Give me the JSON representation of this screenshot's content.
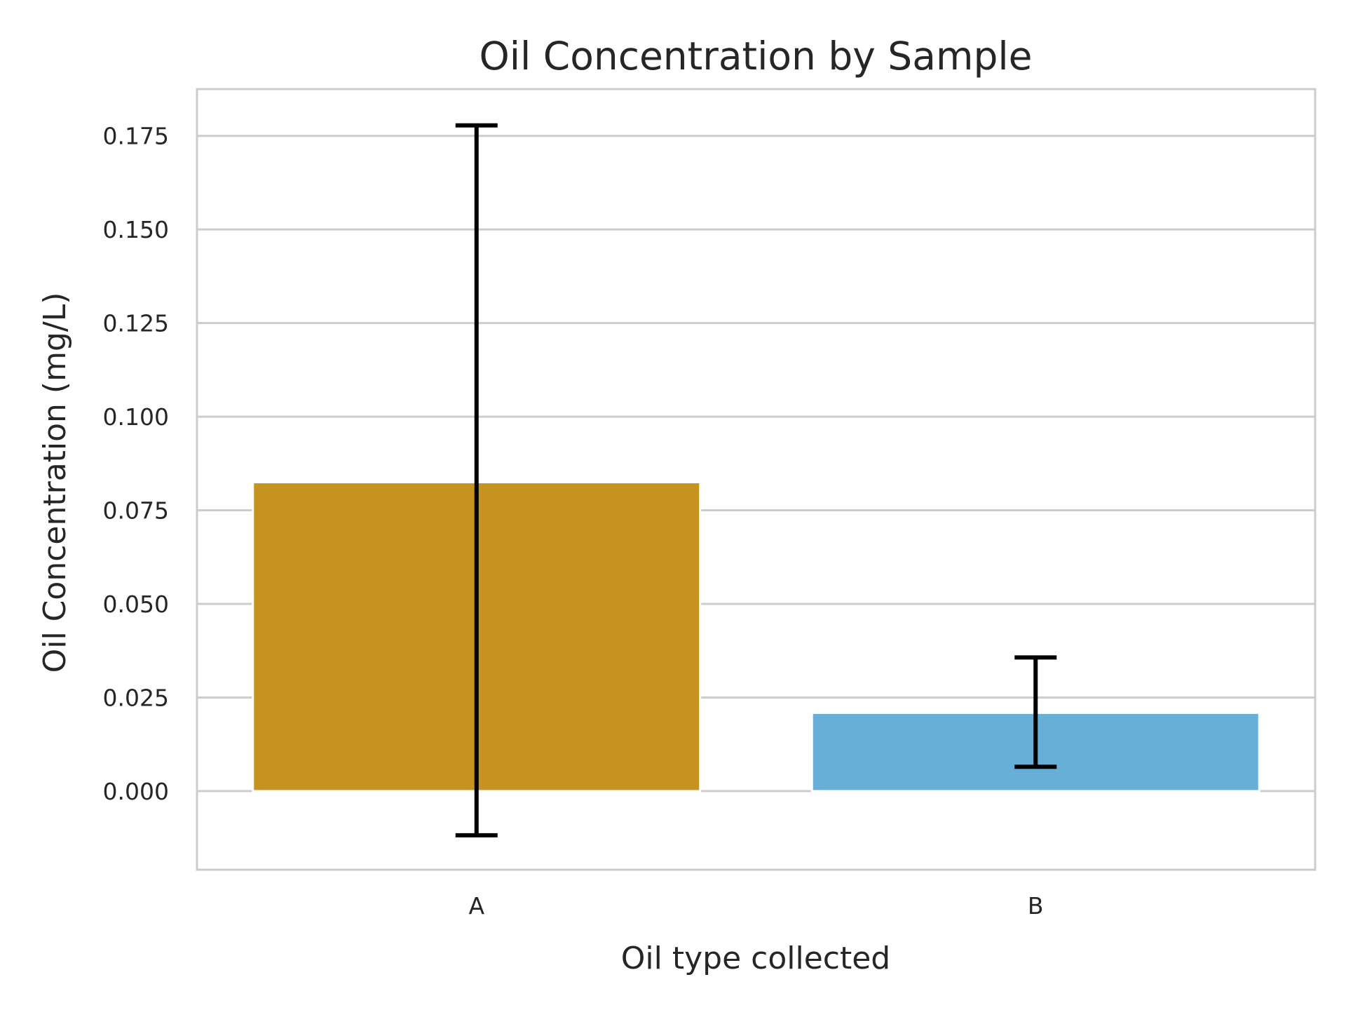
{
  "chart_data": {
    "type": "bar",
    "title": "Oil Concentration by Sample",
    "xlabel": "Oil type collected",
    "ylabel": "Oil Concentration (mg/L)",
    "categories": [
      "A",
      "B"
    ],
    "values": [
      0.0825,
      0.0209
    ],
    "errors": [
      {
        "low": -0.0118,
        "high": 0.1778
      },
      {
        "low": 0.0065,
        "high": 0.0357
      }
    ],
    "ylim": [
      -0.021,
      0.1875
    ],
    "yticks": [
      0.0,
      0.025,
      0.05,
      0.075,
      0.1,
      0.125,
      0.15,
      0.175
    ],
    "ytick_labels": [
      "0.000",
      "0.025",
      "0.050",
      "0.075",
      "0.100",
      "0.125",
      "0.150",
      "0.175"
    ],
    "colors": [
      "#C69220",
      "#67AFD6"
    ],
    "grid": "horizontal",
    "legend": "none"
  }
}
